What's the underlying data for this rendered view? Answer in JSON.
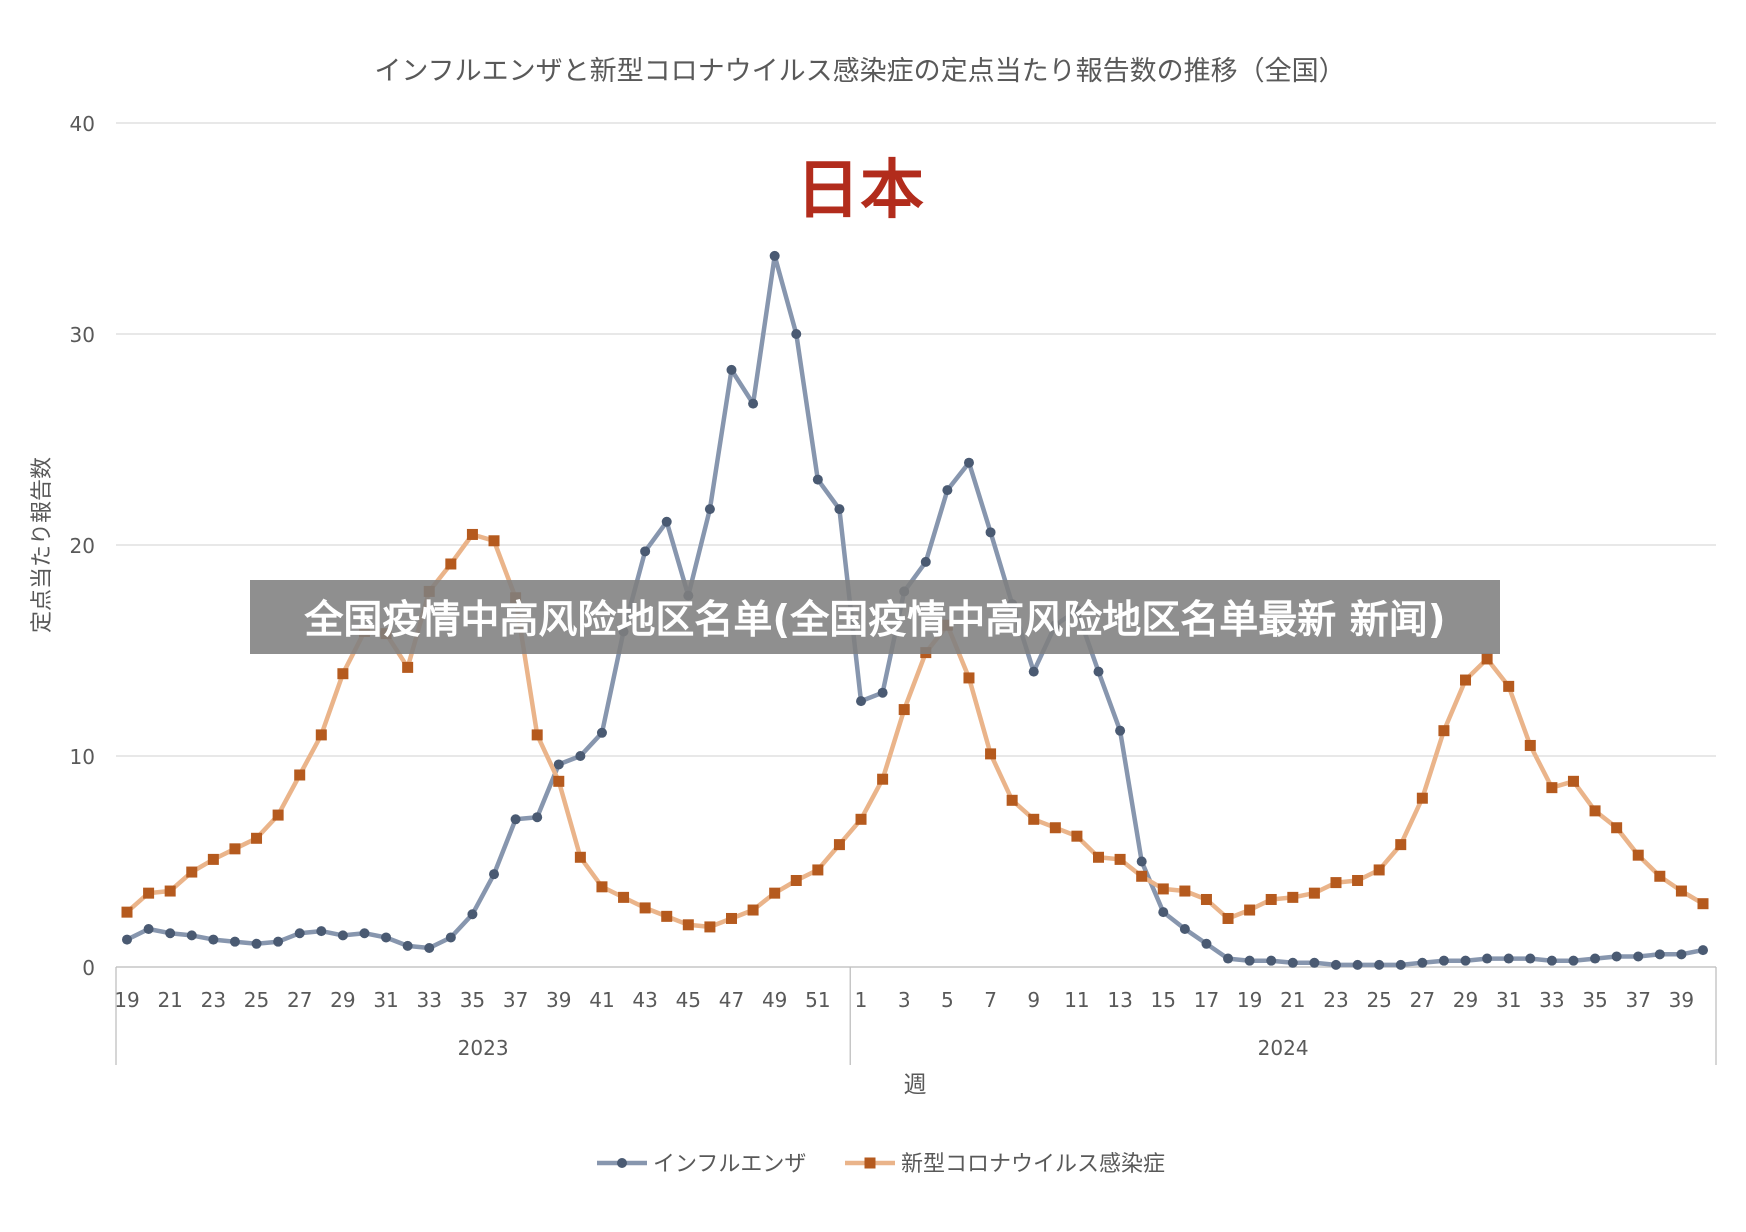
{
  "chart_data": {
    "type": "line",
    "title": "インフルエンザと新型コロナウイルス感染症の定点当たり報告数の推移（全国）",
    "annotation": "日本",
    "ylabel": "定点当たり報告数",
    "xlabel": "週",
    "ylim": [
      0,
      40
    ],
    "yticks": [
      0,
      10,
      20,
      30,
      40
    ],
    "grid": true,
    "legend": "bottom",
    "year_groups": [
      {
        "label": "2023",
        "start": 0,
        "end": 33
      },
      {
        "label": "2024",
        "start": 34,
        "end": 73
      }
    ],
    "x": [
      19,
      20,
      21,
      22,
      23,
      24,
      25,
      26,
      27,
      28,
      29,
      30,
      31,
      32,
      33,
      34,
      35,
      36,
      37,
      38,
      39,
      40,
      41,
      42,
      43,
      44,
      45,
      46,
      47,
      48,
      49,
      50,
      51,
      52,
      1,
      2,
      3,
      4,
      5,
      6,
      7,
      8,
      9,
      10,
      11,
      12,
      13,
      14,
      15,
      16,
      17,
      18,
      19,
      20,
      21,
      22,
      23,
      24,
      25,
      26,
      27,
      28,
      29,
      30,
      31,
      32,
      33,
      34,
      35,
      36,
      37,
      38,
      39,
      40
    ],
    "tick_labels": [
      "19",
      "21",
      "23",
      "25",
      "27",
      "29",
      "31",
      "33",
      "35",
      "37",
      "39",
      "41",
      "43",
      "45",
      "47",
      "49",
      "51",
      "1",
      "3",
      "5",
      "7",
      "9",
      "11",
      "13",
      "15",
      "17",
      "19",
      "21",
      "23",
      "25",
      "27",
      "29",
      "31",
      "33",
      "35",
      "37",
      "39"
    ],
    "series": [
      {
        "name": "インフルエンザ",
        "color": "#4a5a72",
        "line_color": "#8796ae",
        "marker": "circle",
        "values": [
          1.3,
          1.8,
          1.6,
          1.5,
          1.3,
          1.2,
          1.1,
          1.2,
          1.6,
          1.7,
          1.5,
          1.6,
          1.4,
          1.0,
          0.9,
          1.4,
          2.5,
          4.4,
          7.0,
          7.1,
          9.6,
          10.0,
          11.1,
          15.9,
          19.7,
          21.1,
          17.6,
          21.7,
          28.3,
          26.7,
          33.7,
          30.0,
          23.1,
          21.7,
          12.6,
          13.0,
          17.8,
          19.2,
          22.6,
          23.9,
          20.6,
          17.2,
          14.0,
          16.2,
          16.9,
          14.0,
          11.2,
          5.0,
          2.6,
          1.8,
          1.1,
          0.4,
          0.3,
          0.3,
          0.2,
          0.2,
          0.1,
          0.1,
          0.1,
          0.1,
          0.2,
          0.3,
          0.3,
          0.4,
          0.4,
          0.4,
          0.3,
          0.3,
          0.4,
          0.5,
          0.5,
          0.6,
          0.6,
          0.8
        ]
      },
      {
        "name": "新型コロナウイルス感染症",
        "color": "#b55a1e",
        "line_color": "#eab48a",
        "marker": "square",
        "values": [
          2.6,
          3.5,
          3.6,
          4.5,
          5.1,
          5.6,
          6.1,
          7.2,
          9.1,
          11.0,
          13.9,
          15.9,
          15.8,
          14.2,
          17.8,
          19.1,
          20.5,
          20.2,
          17.5,
          11.0,
          8.8,
          5.2,
          3.8,
          3.3,
          2.8,
          2.4,
          2.0,
          1.9,
          2.3,
          2.7,
          3.5,
          4.1,
          4.6,
          5.8,
          7.0,
          8.9,
          12.2,
          14.9,
          16.2,
          13.7,
          10.1,
          7.9,
          7.0,
          6.6,
          6.2,
          5.2,
          5.1,
          4.3,
          3.7,
          3.6,
          3.2,
          2.3,
          2.7,
          3.2,
          3.3,
          3.5,
          4.0,
          4.1,
          4.6,
          5.8,
          8.0,
          11.2,
          13.6,
          14.6,
          13.3,
          10.5,
          8.5,
          8.8,
          7.4,
          6.6,
          5.3,
          4.3,
          3.6,
          3.0
        ]
      }
    ]
  },
  "overlay": {
    "banner_text": "全国疫情中高风险地区名单(全国疫情中高风险地区名单最新 新闻)"
  }
}
